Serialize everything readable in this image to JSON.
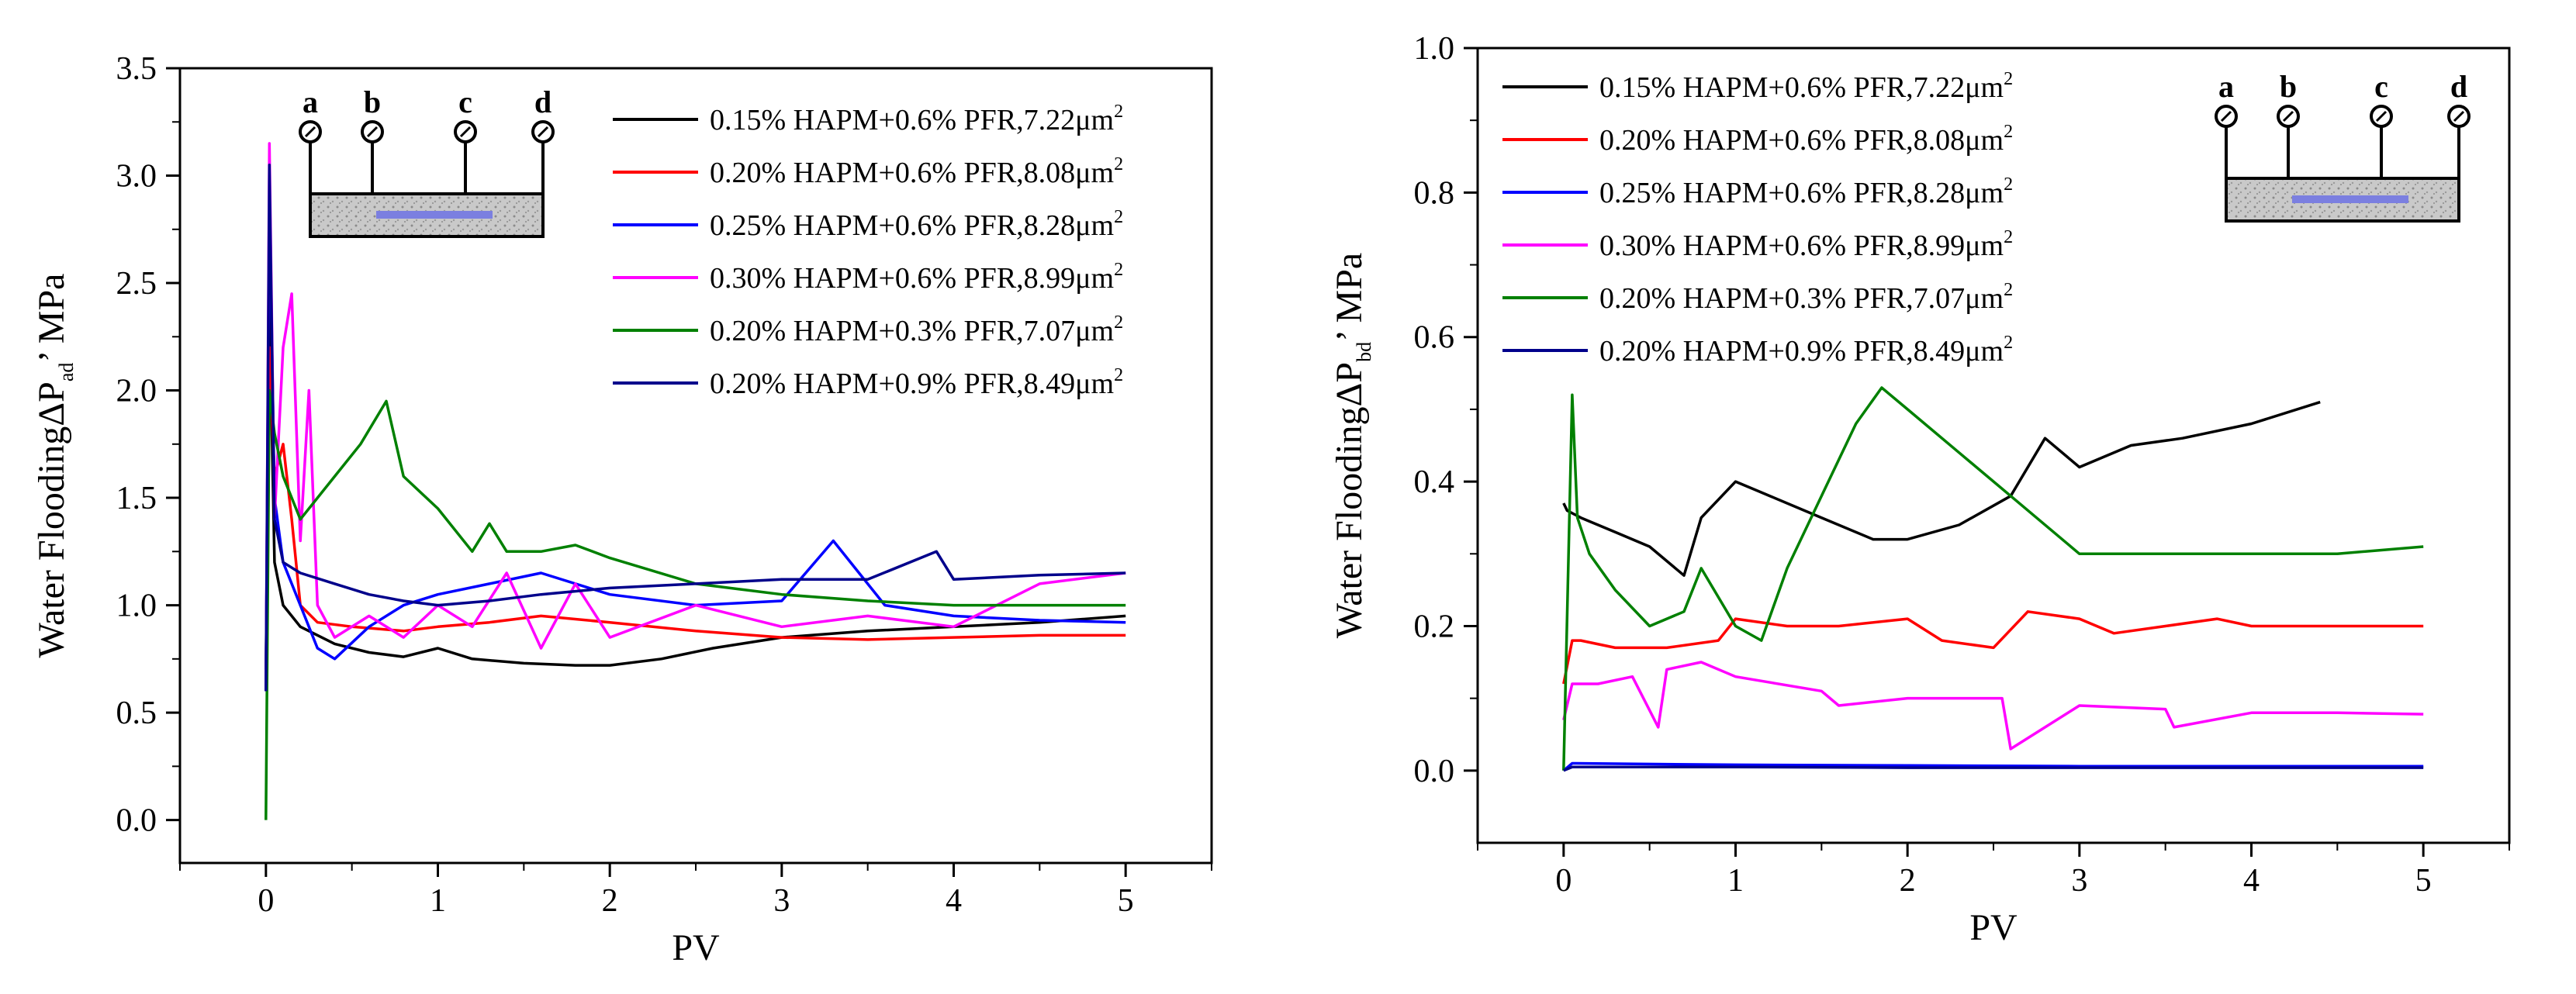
{
  "chart_data": [
    {
      "type": "line",
      "panel": "left",
      "ylabel_main": "Water Flooding",
      "ylabel_delta": "ΔP",
      "ylabel_sub": "ad",
      "ylabel_unit": "’  MPa",
      "xlabel": "PV",
      "xlim": [
        -0.5,
        5.5
      ],
      "ylim": [
        -0.2,
        3.5
      ],
      "xticks": [
        0,
        1,
        2,
        3,
        4,
        5
      ],
      "yticks": [
        0.0,
        0.5,
        1.0,
        1.5,
        2.0,
        2.5,
        3.0,
        3.5
      ],
      "legend_position": "top-right",
      "inset_probes": [
        "a",
        "b",
        "c",
        "d"
      ],
      "series": [
        {
          "name": "0.15% HAPM+0.6% PFR,7.22μm",
          "sup": "2",
          "color": "#000000",
          "x": [
            0,
            0.02,
            0.05,
            0.1,
            0.2,
            0.4,
            0.6,
            0.8,
            1.0,
            1.2,
            1.5,
            1.8,
            2.0,
            2.3,
            2.6,
            3.0,
            3.5,
            4.0,
            4.5,
            5.0
          ],
          "y": [
            0.7,
            2.4,
            1.2,
            1.0,
            0.9,
            0.82,
            0.78,
            0.76,
            0.8,
            0.75,
            0.73,
            0.72,
            0.72,
            0.75,
            0.8,
            0.85,
            0.88,
            0.9,
            0.92,
            0.95
          ]
        },
        {
          "name": "0.20% HAPM+0.6% PFR,8.08μm",
          "sup": "2",
          "color": "#ff0000",
          "x": [
            0,
            0.02,
            0.05,
            0.1,
            0.15,
            0.2,
            0.3,
            0.5,
            0.8,
            1.0,
            1.3,
            1.6,
            2.0,
            2.5,
            3.0,
            3.5,
            4.0,
            4.5,
            5.0
          ],
          "y": [
            0.6,
            2.2,
            1.6,
            1.75,
            1.4,
            1.0,
            0.92,
            0.9,
            0.88,
            0.9,
            0.92,
            0.95,
            0.92,
            0.88,
            0.85,
            0.84,
            0.85,
            0.86,
            0.86
          ]
        },
        {
          "name": "0.25% HAPM+0.6% PFR,8.28μm",
          "sup": "2",
          "color": "#0000ff",
          "x": [
            0,
            0.02,
            0.05,
            0.1,
            0.2,
            0.3,
            0.4,
            0.6,
            0.8,
            1.0,
            1.3,
            1.6,
            2.0,
            2.5,
            3.0,
            3.3,
            3.6,
            4.0,
            4.5,
            5.0
          ],
          "y": [
            0.6,
            2.9,
            1.5,
            1.2,
            1.0,
            0.8,
            0.75,
            0.9,
            1.0,
            1.05,
            1.1,
            1.15,
            1.05,
            1.0,
            1.02,
            1.3,
            1.0,
            0.95,
            0.93,
            0.92
          ]
        },
        {
          "name": "0.30% HAPM+0.6% PFR,8.99μm",
          "sup": "2",
          "color": "#ff00ff",
          "x": [
            0,
            0.02,
            0.05,
            0.1,
            0.15,
            0.2,
            0.25,
            0.3,
            0.4,
            0.6,
            0.8,
            1.0,
            1.2,
            1.4,
            1.6,
            1.8,
            2.0,
            2.5,
            3.0,
            3.5,
            4.0,
            4.5,
            5.0
          ],
          "y": [
            0.6,
            3.15,
            1.4,
            2.2,
            2.45,
            1.3,
            2.0,
            1.0,
            0.85,
            0.95,
            0.85,
            1.0,
            0.9,
            1.15,
            0.8,
            1.1,
            0.85,
            1.0,
            0.9,
            0.95,
            0.9,
            1.1,
            1.15
          ]
        },
        {
          "name": "0.20% HAPM+0.3% PFR,7.07μm",
          "sup": "2",
          "color": "#008000",
          "x": [
            0,
            0.02,
            0.05,
            0.1,
            0.2,
            0.3,
            0.4,
            0.55,
            0.7,
            0.8,
            1.0,
            1.2,
            1.3,
            1.4,
            1.6,
            1.8,
            2.0,
            2.5,
            3.0,
            3.5,
            4.0,
            4.5,
            5.0
          ],
          "y": [
            0.0,
            2.0,
            1.8,
            1.6,
            1.4,
            1.5,
            1.6,
            1.75,
            1.95,
            1.6,
            1.45,
            1.25,
            1.38,
            1.25,
            1.25,
            1.28,
            1.22,
            1.1,
            1.05,
            1.02,
            1.0,
            1.0,
            1.0
          ]
        },
        {
          "name": "0.20% HAPM+0.9% PFR,8.49μm",
          "sup": "2",
          "color": "#00008b",
          "x": [
            0,
            0.02,
            0.05,
            0.1,
            0.2,
            0.4,
            0.6,
            0.8,
            1.0,
            1.3,
            1.6,
            2.0,
            2.5,
            3.0,
            3.5,
            3.9,
            4.0,
            4.5,
            5.0
          ],
          "y": [
            0.6,
            3.05,
            1.4,
            1.2,
            1.15,
            1.1,
            1.05,
            1.02,
            1.0,
            1.02,
            1.05,
            1.08,
            1.1,
            1.12,
            1.12,
            1.25,
            1.12,
            1.14,
            1.15
          ]
        }
      ]
    },
    {
      "type": "line",
      "panel": "right",
      "ylabel_main": "Water Flooding",
      "ylabel_delta": "ΔP",
      "ylabel_sub": "bd",
      "ylabel_unit": "’  MPa",
      "xlabel": "PV",
      "xlim": [
        -0.5,
        5.5
      ],
      "ylim": [
        -0.1,
        1.0
      ],
      "xticks": [
        0,
        1,
        2,
        3,
        4,
        5
      ],
      "yticks": [
        0.0,
        0.2,
        0.4,
        0.6,
        0.8,
        1.0
      ],
      "legend_position": "top-left",
      "inset_probes": [
        "a",
        "b",
        "c",
        "d"
      ],
      "series": [
        {
          "name": "0.15% HAPM+0.6% PFR,7.22μm",
          "sup": "2",
          "color": "#000000",
          "x": [
            0,
            0.02,
            0.1,
            0.3,
            0.5,
            0.7,
            0.8,
            1.0,
            1.2,
            1.5,
            1.8,
            2.0,
            2.3,
            2.6,
            2.8,
            3.0,
            3.3,
            3.6,
            4.0,
            4.4
          ],
          "y": [
            0.37,
            0.36,
            0.35,
            0.33,
            0.31,
            0.27,
            0.35,
            0.4,
            0.38,
            0.35,
            0.32,
            0.32,
            0.34,
            0.38,
            0.46,
            0.42,
            0.45,
            0.46,
            0.48,
            0.51
          ]
        },
        {
          "name": "0.20% HAPM+0.6% PFR,8.08μm",
          "sup": "2",
          "color": "#ff0000",
          "x": [
            0,
            0.05,
            0.1,
            0.3,
            0.6,
            0.9,
            1.0,
            1.3,
            1.6,
            2.0,
            2.2,
            2.5,
            2.7,
            3.0,
            3.2,
            3.5,
            3.8,
            4.0,
            4.5,
            5.0
          ],
          "y": [
            0.12,
            0.18,
            0.18,
            0.17,
            0.17,
            0.18,
            0.21,
            0.2,
            0.2,
            0.21,
            0.18,
            0.17,
            0.22,
            0.21,
            0.19,
            0.2,
            0.21,
            0.2,
            0.2,
            0.2
          ]
        },
        {
          "name": "0.25% HAPM+0.6% PFR,8.28μm",
          "sup": "2",
          "color": "#0000ff",
          "x": [
            0,
            0.05,
            1.0,
            2.0,
            3.0,
            4.0,
            5.0
          ],
          "y": [
            0.0,
            0.01,
            0.008,
            0.007,
            0.006,
            0.006,
            0.006
          ]
        },
        {
          "name": "0.30% HAPM+0.6% PFR,8.99μm",
          "sup": "2",
          "color": "#ff00ff",
          "x": [
            0,
            0.05,
            0.2,
            0.4,
            0.55,
            0.6,
            0.8,
            1.0,
            1.5,
            1.6,
            2.0,
            2.55,
            2.6,
            3.0,
            3.5,
            3.55,
            4.0,
            4.5,
            5.0
          ],
          "y": [
            0.07,
            0.12,
            0.12,
            0.13,
            0.06,
            0.14,
            0.15,
            0.13,
            0.11,
            0.09,
            0.1,
            0.1,
            0.03,
            0.09,
            0.085,
            0.06,
            0.08,
            0.08,
            0.078
          ]
        },
        {
          "name": "0.20% HAPM+0.3% PFR,7.07μm",
          "sup": "2",
          "color": "#008000",
          "x": [
            0,
            0.05,
            0.08,
            0.15,
            0.3,
            0.5,
            0.7,
            0.8,
            1.0,
            1.15,
            1.3,
            1.5,
            1.7,
            1.85,
            2.0,
            2.3,
            2.6,
            3.0,
            3.5,
            4.0,
            4.5,
            5.0
          ],
          "y": [
            0.0,
            0.52,
            0.35,
            0.3,
            0.25,
            0.2,
            0.22,
            0.28,
            0.2,
            0.18,
            0.28,
            0.38,
            0.48,
            0.53,
            0.5,
            0.44,
            0.38,
            0.3,
            0.3,
            0.3,
            0.3,
            0.31
          ]
        },
        {
          "name": "0.20% HAPM+0.9% PFR,8.49μm",
          "sup": "2",
          "color": "#00008b",
          "x": [
            0,
            0.05,
            1.0,
            2.0,
            3.0,
            4.0,
            5.0
          ],
          "y": [
            0.0,
            0.005,
            0.005,
            0.004,
            0.004,
            0.004,
            0.004
          ]
        }
      ]
    }
  ]
}
